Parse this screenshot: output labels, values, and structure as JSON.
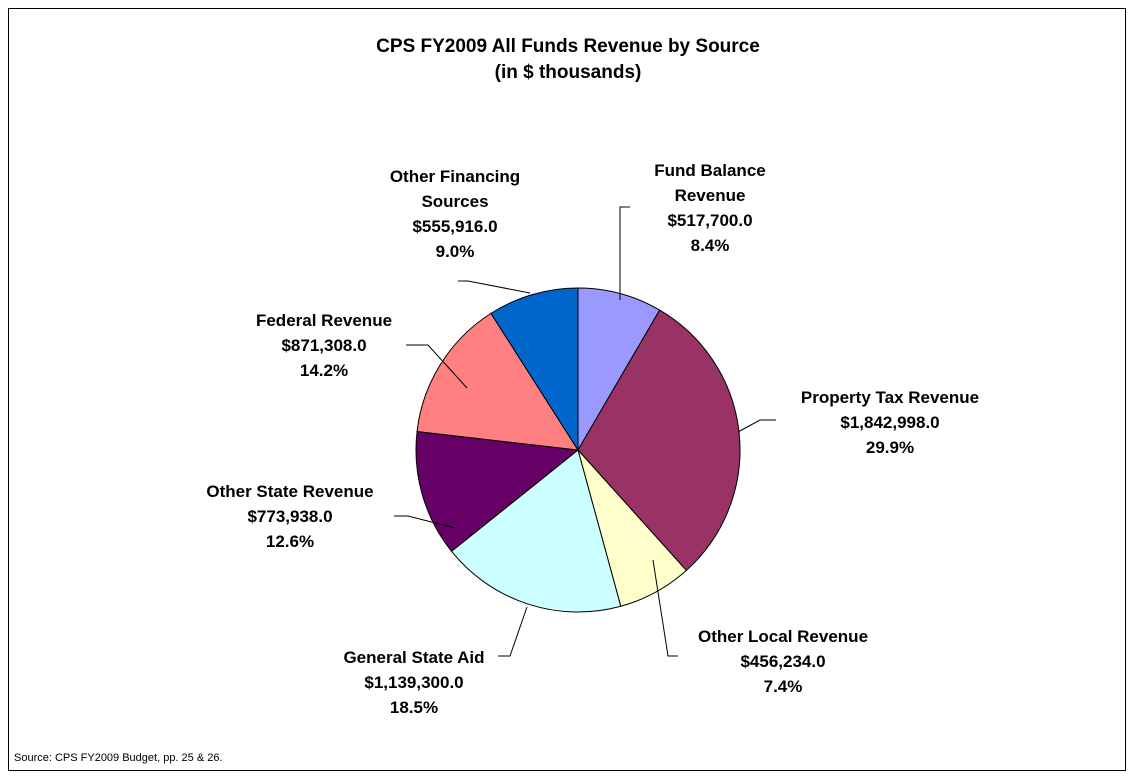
{
  "chart_data": {
    "type": "pie",
    "title": "CPS FY2009 All Funds Revenue by Source",
    "subtitle": "(in $ thousands)",
    "categories": [
      "Fund Balance Revenue",
      "Property Tax Revenue",
      "Other Local Revenue",
      "General State Aid",
      "Other State Revenue",
      "Federal Revenue",
      "Other Financing Sources"
    ],
    "values": [
      517700,
      1842998,
      456234,
      1139300,
      773938,
      871308,
      555916
    ],
    "value_labels": [
      "$517,700.0",
      "$1,842,998.0",
      "$456,234.0",
      "$1,139,300.0",
      "$773,938.0",
      "$871,308.0",
      "$555,916.0"
    ],
    "percents": [
      8.4,
      29.9,
      7.4,
      18.5,
      12.6,
      14.2,
      9.0
    ],
    "percent_labels": [
      "8.4%",
      "29.9%",
      "7.4%",
      "18.5%",
      "12.6%",
      "14.2%",
      "9.0%"
    ],
    "colors": [
      "#9999ff",
      "#993366",
      "#ffffcc",
      "#ccffff",
      "#660066",
      "#ff8080",
      "#0066cc"
    ],
    "source": "Source:  CPS FY2009 Budget, pp. 25 & 26."
  }
}
